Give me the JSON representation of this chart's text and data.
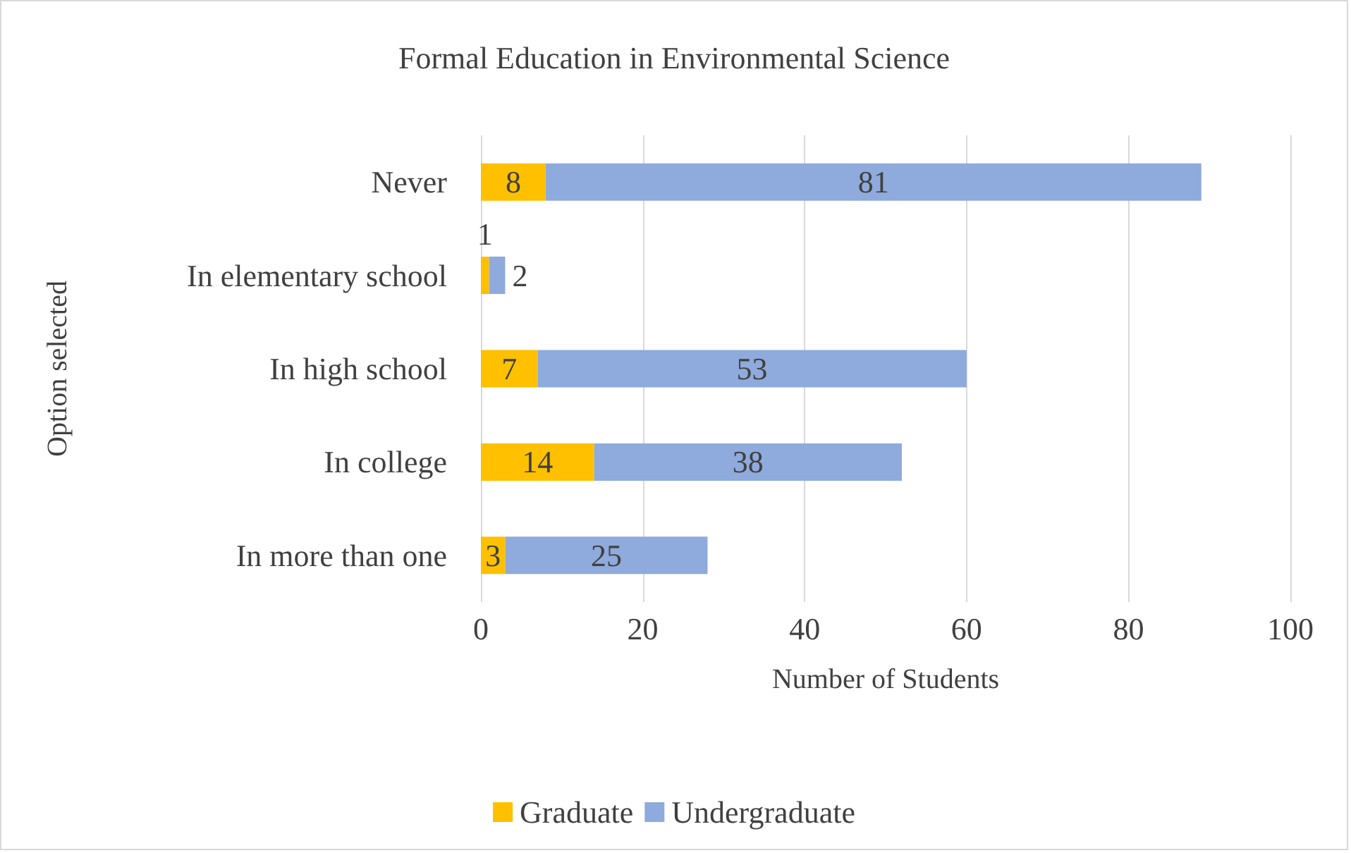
{
  "chart_data": {
    "type": "bar",
    "orientation": "horizontal",
    "stacked": true,
    "title": "Formal Education in Environmental Science",
    "xlabel": "Number of Students",
    "ylabel": "Option selected",
    "categories": [
      "Never",
      "In elementary school",
      "In high school",
      "In college",
      "In more than one"
    ],
    "series": [
      {
        "name": "Graduate",
        "color": "#ffc000",
        "values": [
          8,
          1,
          7,
          14,
          3
        ]
      },
      {
        "name": "Undergraduate",
        "color": "#8faadc",
        "values": [
          81,
          2,
          53,
          38,
          25
        ]
      }
    ],
    "xlim": [
      0,
      100
    ],
    "xticks": [
      0,
      20,
      40,
      60,
      80,
      100
    ],
    "grid": "x",
    "legend": "bottom",
    "data_labels": true
  }
}
